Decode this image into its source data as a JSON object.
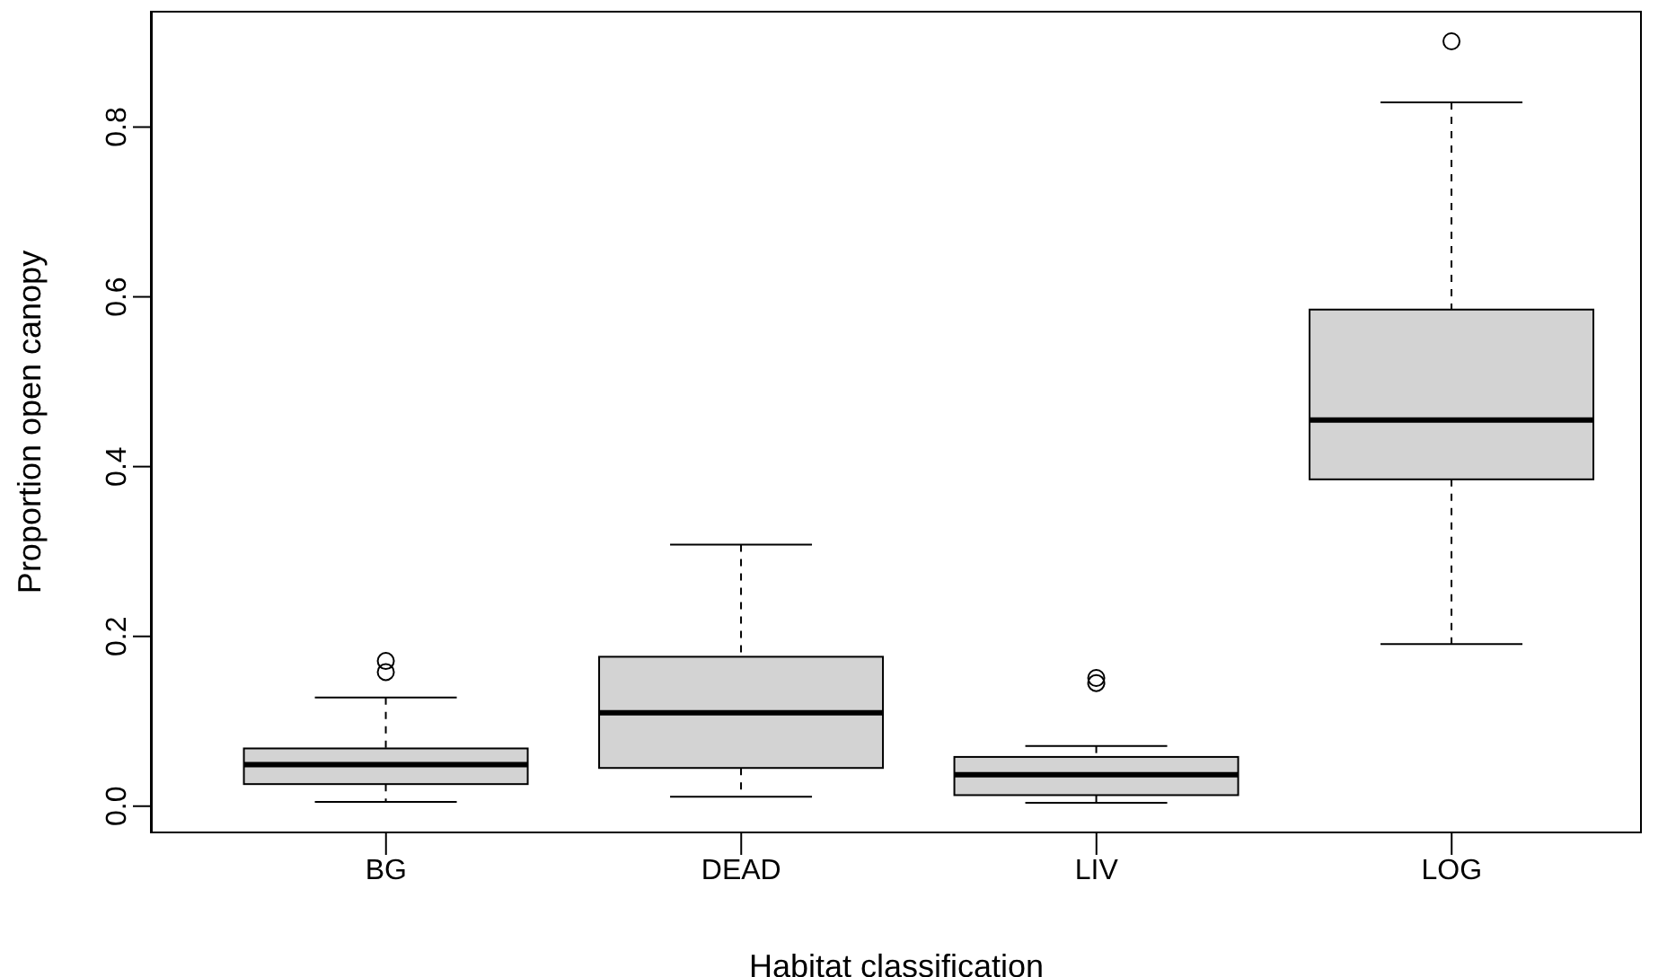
{
  "chart_data": {
    "type": "box",
    "xlabel": "Habitat classification",
    "ylabel": "Proportion open canopy",
    "categories": [
      "BG",
      "DEAD",
      "LIV",
      "LOG"
    ],
    "color": "#d3d3d3",
    "boxes": [
      {
        "low": 0.005,
        "q1": 0.026,
        "median": 0.049,
        "q3": 0.068,
        "high": 0.128,
        "outliers": [
          0.171,
          0.158
        ]
      },
      {
        "low": 0.011,
        "q1": 0.045,
        "median": 0.11,
        "q3": 0.176,
        "high": 0.308
      },
      {
        "low": 0.004,
        "q1": 0.013,
        "median": 0.037,
        "q3": 0.058,
        "high": 0.071,
        "outliers": [
          0.151,
          0.145
        ]
      },
      {
        "low": 0.191,
        "q1": 0.385,
        "median": 0.455,
        "q3": 0.585,
        "high": 0.829,
        "outliers": [
          0.901
        ]
      }
    ],
    "ylim": [
      -0.032,
      0.937
    ],
    "yticks": [
      {
        "value": 0,
        "label": "0.0"
      },
      0.2,
      0.4,
      0.6,
      0.8
    ]
  }
}
